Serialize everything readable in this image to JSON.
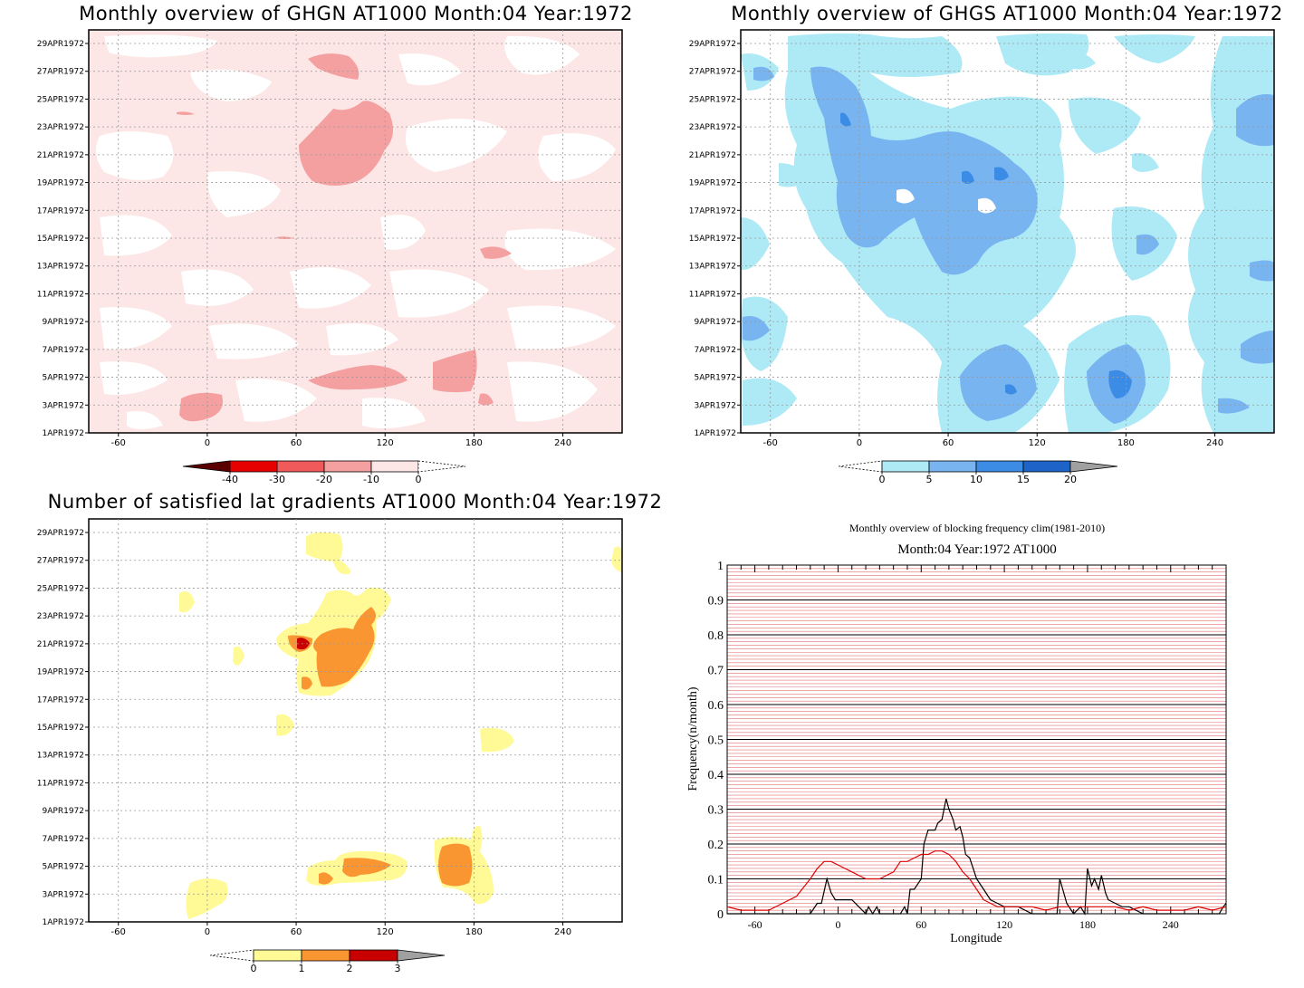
{
  "panels": [
    {
      "id": "ghgn",
      "title": "Monthly overview of GHGN AT1000 Month:04 Year:1972",
      "type": "heatmap",
      "ylabels": [
        "29APR1972",
        "27APR1972",
        "25APR1972",
        "23APR1972",
        "21APR1972",
        "19APR1972",
        "17APR1972",
        "15APR1972",
        "13APR1972",
        "11APR1972",
        "9APR1972",
        "7APR1972",
        "5APR1972",
        "3APR1972",
        "1APR1972"
      ],
      "xticks": [
        "-60",
        "0",
        "60",
        "120",
        "180",
        "240"
      ],
      "xrange": [
        -80,
        280
      ],
      "colorbar": {
        "labels": [
          "-40",
          "-30",
          "-20",
          "-10",
          "0"
        ],
        "colors": [
          "#5a0000",
          "#e60000",
          "#f05a5a",
          "#f5a0a0",
          "#fde6e6",
          "#ffffff"
        ]
      }
    },
    {
      "id": "ghgs",
      "title": "Monthly overview of GHGS AT1000 Month:04 Year:1972",
      "type": "heatmap",
      "ylabels": [
        "29APR1972",
        "27APR1972",
        "25APR1972",
        "23APR1972",
        "21APR1972",
        "19APR1972",
        "17APR1972",
        "15APR1972",
        "13APR1972",
        "11APR1972",
        "9APR1972",
        "7APR1972",
        "5APR1972",
        "3APR1972",
        "1APR1972"
      ],
      "xticks": [
        "-60",
        "0",
        "60",
        "120",
        "180",
        "240"
      ],
      "xrange": [
        -80,
        280
      ],
      "colorbar": {
        "labels": [
          "0",
          "5",
          "10",
          "15",
          "20"
        ],
        "colors": [
          "#ffffff",
          "#aeeaf5",
          "#78b4f0",
          "#3c8ce6",
          "#1e64c8",
          "#a0a0a0"
        ]
      }
    },
    {
      "id": "nsat",
      "title": "Number of satisfied lat gradients AT1000 Month:04 Year:1972",
      "type": "heatmap",
      "ylabels": [
        "29APR1972",
        "27APR1972",
        "25APR1972",
        "23APR1972",
        "21APR1972",
        "19APR1972",
        "17APR1972",
        "15APR1972",
        "13APR1972",
        "11APR1972",
        "9APR1972",
        "7APR1972",
        "5APR1972",
        "3APR1972",
        "1APR1972"
      ],
      "xticks": [
        "-60",
        "0",
        "60",
        "120",
        "180",
        "240"
      ],
      "xrange": [
        -80,
        280
      ],
      "colorbar": {
        "labels": [
          "0",
          "1",
          "2",
          "3"
        ],
        "colors": [
          "#ffffff",
          "#fffa96",
          "#fa9632",
          "#c80000",
          "#a0a0a0"
        ]
      }
    }
  ],
  "freq": {
    "title1": "Monthly overview of blocking frequency clim(1981-2010)",
    "title2": "Month:04 Year:1972  AT1000",
    "ylabel": "Frequency(n/month)",
    "xlabel": "Longitude",
    "yticks": [
      "0",
      "0.1",
      "0.2",
      "0.3",
      "0.4",
      "0.5",
      "0.6",
      "0.7",
      "0.8",
      "0.9",
      "1"
    ],
    "xticks": [
      "-60",
      "0",
      "60",
      "120",
      "180",
      "240"
    ]
  },
  "chart_data": [
    {
      "type": "line",
      "title": "Monthly overview of blocking frequency clim(1981-2010)",
      "subtitle": "Month:04 Year:1972  AT1000",
      "xlabel": "Longitude",
      "ylabel": "Frequency(n/month)",
      "xlim": [
        -80,
        280
      ],
      "ylim": [
        0,
        1
      ],
      "grid": true,
      "series": [
        {
          "color": "#000000",
          "x": [
            -80,
            -70,
            -60,
            -50,
            -40,
            -30,
            -25,
            -20,
            -15,
            -12,
            -8,
            -5,
            -2,
            0,
            5,
            10,
            15,
            20,
            22,
            25,
            28,
            30,
            35,
            40,
            45,
            48,
            50,
            52,
            55,
            60,
            62,
            65,
            68,
            70,
            72,
            75,
            78,
            80,
            83,
            85,
            88,
            90,
            92,
            95,
            100,
            105,
            110,
            115,
            120,
            125,
            130,
            140,
            150,
            155,
            158,
            160,
            165,
            170,
            175,
            178,
            180,
            183,
            185,
            188,
            190,
            193,
            195,
            200,
            205,
            210,
            220,
            230,
            240,
            250,
            260,
            270,
            275,
            278,
            280
          ],
          "y": [
            0,
            0,
            0,
            0,
            0,
            0,
            0,
            0,
            0.03,
            0.03,
            0.1,
            0.06,
            0.04,
            0.04,
            0.04,
            0.04,
            0.02,
            0,
            0.02,
            0,
            0.02,
            0,
            0,
            0,
            0,
            0.02,
            0,
            0.07,
            0.07,
            0.1,
            0.2,
            0.24,
            0.24,
            0.24,
            0.26,
            0.27,
            0.33,
            0.3,
            0.27,
            0.24,
            0.25,
            0.22,
            0.17,
            0.16,
            0.1,
            0.07,
            0.04,
            0.03,
            0.02,
            0.02,
            0.02,
            0,
            0,
            0,
            0,
            0.1,
            0.03,
            0,
            0.02,
            0,
            0.13,
            0.08,
            0.1,
            0.07,
            0.11,
            0.06,
            0.04,
            0.03,
            0.02,
            0.02,
            0,
            0,
            0,
            0,
            0,
            0,
            0,
            0.02,
            0.03
          ]
        },
        {
          "color": "#e00000",
          "x": [
            -80,
            -70,
            -60,
            -50,
            -40,
            -30,
            -20,
            -15,
            -10,
            -5,
            0,
            5,
            10,
            15,
            20,
            25,
            30,
            35,
            40,
            45,
            50,
            55,
            60,
            65,
            70,
            75,
            80,
            85,
            90,
            95,
            100,
            105,
            110,
            115,
            120,
            130,
            140,
            150,
            160,
            170,
            180,
            190,
            200,
            210,
            220,
            230,
            240,
            250,
            260,
            270,
            280
          ],
          "y": [
            0.02,
            0.01,
            0.01,
            0.01,
            0.03,
            0.05,
            0.1,
            0.13,
            0.15,
            0.15,
            0.14,
            0.13,
            0.12,
            0.11,
            0.1,
            0.1,
            0.1,
            0.11,
            0.12,
            0.15,
            0.15,
            0.16,
            0.17,
            0.17,
            0.18,
            0.18,
            0.17,
            0.15,
            0.12,
            0.1,
            0.07,
            0.04,
            0.03,
            0.02,
            0.02,
            0.02,
            0.02,
            0.01,
            0.02,
            0.02,
            0.02,
            0.02,
            0.02,
            0.01,
            0.02,
            0.01,
            0.01,
            0.01,
            0.02,
            0.01,
            0.02
          ]
        }
      ]
    }
  ]
}
